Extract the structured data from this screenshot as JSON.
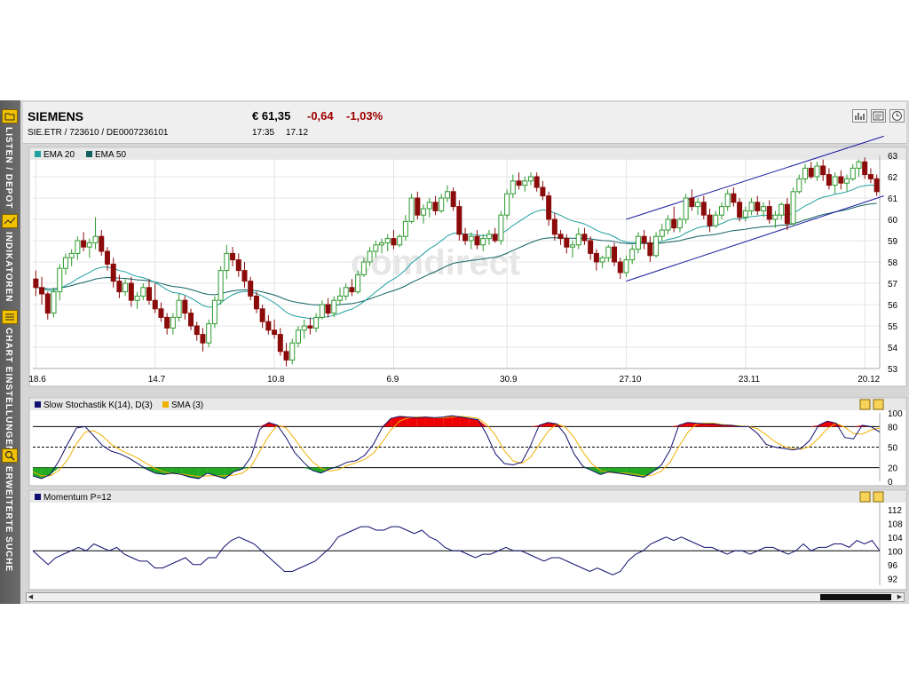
{
  "sidebar": {
    "items": [
      {
        "label": "LISTEN / DEPOT",
        "icon": "folder-icon"
      },
      {
        "label": "INDIKATOREN",
        "icon": "indicator-icon"
      },
      {
        "label": "CHART EINSTELLUNGEN",
        "icon": "list-icon"
      },
      {
        "label": "ERWEITERTE SUCHE",
        "icon": "magnifier-icon"
      }
    ]
  },
  "header": {
    "name": "SIEMENS",
    "identifiers": "SIE.ETR  /  723610  /  DE0007236101",
    "price": "€ 61,35",
    "change": "-0,64",
    "change_pct": "-1,03%",
    "time": "17:35",
    "date": "17.12",
    "buttons": [
      "bar-chart-icon",
      "news-icon",
      "clock-icon"
    ]
  },
  "watermark": "comdirect",
  "colors": {
    "up": "#2e9a2e",
    "down": "#8b0a0a",
    "ema20": "#20a0a0",
    "ema50": "#106060",
    "channel": "#1a1aa0",
    "stoch_k": "#101070",
    "stoch_d": "#f0b000",
    "overbought_fill": "#ee0000",
    "oversold_fill": "#22aa22",
    "momentum": "#101070"
  },
  "chart_data": [
    {
      "type": "candlestick",
      "legend": [
        "EMA 20",
        "EMA 50"
      ],
      "x_ticks": [
        "18.6",
        "14.7",
        "10.8",
        "6.9",
        "30.9",
        "27.10",
        "23.11",
        "20.12"
      ],
      "y_ticks": [
        53,
        54,
        55,
        56,
        57,
        58,
        59,
        60,
        61,
        62,
        63
      ],
      "ylim": [
        53,
        63
      ],
      "channel": {
        "upper": [
          [
            27.1,
            60.0
          ],
          [
            20.12,
            63.9
          ]
        ],
        "lower": [
          [
            27.1,
            57.1
          ],
          [
            20.12,
            61.1
          ]
        ]
      },
      "ohlc": [
        [
          57.2,
          57.6,
          56.4,
          56.8
        ],
        [
          56.8,
          57.3,
          56.0,
          56.5
        ],
        [
          56.5,
          56.6,
          55.3,
          55.6
        ],
        [
          55.6,
          56.8,
          55.4,
          56.6
        ],
        [
          56.6,
          57.9,
          56.2,
          57.7
        ],
        [
          57.7,
          58.4,
          57.4,
          58.2
        ],
        [
          58.2,
          58.6,
          57.8,
          58.4
        ],
        [
          58.4,
          59.2,
          58.1,
          59.0
        ],
        [
          59.0,
          59.4,
          58.5,
          58.7
        ],
        [
          58.7,
          59.1,
          58.2,
          58.9
        ],
        [
          58.9,
          60.1,
          58.6,
          59.2
        ],
        [
          59.2,
          59.5,
          58.3,
          58.5
        ],
        [
          58.5,
          58.7,
          57.6,
          57.9
        ],
        [
          57.9,
          58.2,
          56.8,
          57.1
        ],
        [
          57.1,
          57.4,
          56.3,
          56.6
        ],
        [
          56.6,
          57.2,
          56.4,
          57.0
        ],
        [
          57.0,
          57.3,
          55.9,
          56.2
        ],
        [
          56.2,
          56.6,
          55.8,
          56.4
        ],
        [
          56.4,
          57.0,
          56.2,
          56.8
        ],
        [
          56.8,
          57.2,
          56.0,
          56.2
        ],
        [
          56.2,
          57.0,
          55.6,
          55.8
        ],
        [
          55.8,
          56.1,
          55.2,
          55.4
        ],
        [
          55.4,
          55.6,
          54.6,
          54.9
        ],
        [
          54.9,
          55.6,
          54.6,
          55.4
        ],
        [
          55.4,
          56.5,
          55.2,
          56.2
        ],
        [
          56.2,
          56.4,
          55.3,
          55.6
        ],
        [
          55.6,
          55.8,
          54.8,
          55.0
        ],
        [
          55.0,
          55.2,
          54.3,
          54.6
        ],
        [
          54.6,
          54.9,
          53.8,
          54.2
        ],
        [
          54.2,
          55.3,
          54.0,
          55.1
        ],
        [
          55.1,
          56.4,
          54.9,
          56.2
        ],
        [
          56.2,
          57.8,
          56.0,
          57.6
        ],
        [
          57.6,
          58.8,
          57.2,
          58.4
        ],
        [
          58.4,
          58.7,
          57.8,
          58.1
        ],
        [
          58.1,
          58.4,
          57.3,
          57.6
        ],
        [
          57.6,
          58.0,
          56.8,
          57.1
        ],
        [
          57.1,
          57.3,
          56.2,
          56.4
        ],
        [
          56.4,
          56.6,
          55.6,
          55.8
        ],
        [
          55.8,
          56.0,
          54.9,
          55.2
        ],
        [
          55.2,
          55.5,
          54.6,
          54.8
        ],
        [
          54.8,
          55.3,
          54.4,
          54.6
        ],
        [
          54.6,
          54.9,
          53.6,
          53.8
        ],
        [
          53.8,
          54.2,
          53.1,
          53.4
        ],
        [
          53.4,
          54.4,
          53.2,
          54.2
        ],
        [
          54.2,
          55.0,
          54.0,
          54.8
        ],
        [
          54.8,
          55.3,
          54.4,
          55.0
        ],
        [
          55.0,
          55.4,
          54.6,
          54.9
        ],
        [
          54.9,
          55.6,
          54.7,
          55.4
        ],
        [
          55.4,
          56.2,
          55.3,
          56.0
        ],
        [
          56.0,
          56.3,
          55.4,
          55.6
        ],
        [
          55.6,
          56.4,
          55.4,
          56.2
        ],
        [
          56.2,
          56.8,
          56.0,
          56.4
        ],
        [
          56.4,
          57.0,
          56.2,
          56.8
        ],
        [
          56.8,
          57.2,
          56.4,
          56.6
        ],
        [
          56.6,
          57.6,
          56.5,
          57.4
        ],
        [
          57.4,
          58.2,
          57.3,
          58.0
        ],
        [
          58.0,
          58.7,
          57.8,
          58.5
        ],
        [
          58.5,
          59.0,
          58.2,
          58.8
        ],
        [
          58.8,
          59.1,
          58.4,
          58.9
        ],
        [
          58.9,
          59.3,
          58.5,
          59.1
        ],
        [
          59.1,
          59.5,
          58.6,
          58.8
        ],
        [
          58.8,
          59.3,
          58.7,
          59.2
        ],
        [
          59.2,
          60.2,
          59.0,
          59.9
        ],
        [
          59.9,
          61.2,
          59.8,
          61.0
        ],
        [
          61.0,
          61.3,
          60.0,
          60.2
        ],
        [
          60.2,
          60.7,
          59.8,
          60.5
        ],
        [
          60.5,
          61.0,
          60.1,
          60.8
        ],
        [
          60.8,
          61.1,
          60.2,
          60.4
        ],
        [
          60.4,
          61.2,
          60.3,
          61.0
        ],
        [
          61.0,
          61.6,
          60.8,
          61.3
        ],
        [
          61.3,
          61.5,
          60.4,
          60.6
        ],
        [
          60.6,
          60.9,
          59.0,
          59.3
        ],
        [
          59.3,
          59.6,
          58.8,
          59.0
        ],
        [
          59.0,
          59.4,
          58.6,
          59.2
        ],
        [
          59.2,
          59.5,
          58.6,
          58.8
        ],
        [
          58.8,
          59.3,
          58.5,
          59.1
        ],
        [
          59.1,
          59.5,
          58.8,
          59.3
        ],
        [
          59.3,
          59.6,
          58.9,
          59.0
        ],
        [
          59.0,
          60.4,
          58.8,
          60.2
        ],
        [
          60.2,
          61.4,
          60.0,
          61.2
        ],
        [
          61.2,
          62.1,
          61.0,
          61.8
        ],
        [
          61.8,
          62.2,
          61.4,
          61.6
        ],
        [
          61.6,
          62.0,
          61.3,
          61.8
        ],
        [
          61.8,
          62.2,
          61.6,
          62.0
        ],
        [
          62.0,
          62.2,
          61.3,
          61.5
        ],
        [
          61.5,
          61.8,
          60.9,
          61.1
        ],
        [
          61.1,
          61.3,
          59.7,
          60.0
        ],
        [
          60.0,
          60.3,
          59.0,
          59.3
        ],
        [
          59.3,
          59.5,
          58.8,
          59.1
        ],
        [
          59.1,
          59.3,
          58.4,
          58.7
        ],
        [
          58.7,
          59.0,
          58.2,
          58.8
        ],
        [
          58.8,
          59.6,
          58.6,
          59.3
        ],
        [
          59.3,
          59.6,
          58.8,
          59.0
        ],
        [
          59.0,
          59.2,
          58.1,
          58.4
        ],
        [
          58.4,
          58.6,
          57.6,
          58.0
        ],
        [
          58.0,
          58.3,
          57.7,
          58.2
        ],
        [
          58.2,
          58.8,
          58.0,
          58.7
        ],
        [
          58.7,
          58.9,
          57.8,
          58.0
        ],
        [
          58.0,
          58.2,
          57.2,
          57.5
        ],
        [
          57.5,
          58.3,
          57.3,
          58.1
        ],
        [
          58.1,
          58.8,
          57.9,
          58.6
        ],
        [
          58.6,
          59.4,
          58.4,
          59.2
        ],
        [
          59.2,
          59.5,
          58.6,
          58.9
        ],
        [
          58.9,
          59.2,
          58.0,
          58.3
        ],
        [
          58.3,
          59.4,
          58.2,
          59.2
        ],
        [
          59.2,
          59.8,
          59.0,
          59.5
        ],
        [
          59.5,
          60.2,
          59.3,
          60.0
        ],
        [
          60.0,
          60.6,
          59.4,
          59.6
        ],
        [
          59.6,
          60.1,
          59.4,
          60.0
        ],
        [
          60.0,
          61.2,
          59.8,
          61.0
        ],
        [
          61.0,
          61.4,
          60.4,
          60.6
        ],
        [
          60.6,
          61.0,
          60.2,
          60.8
        ],
        [
          60.8,
          61.1,
          60.0,
          60.2
        ],
        [
          60.2,
          60.5,
          59.4,
          59.7
        ],
        [
          59.7,
          60.4,
          59.6,
          60.2
        ],
        [
          60.2,
          60.8,
          60.0,
          60.6
        ],
        [
          60.6,
          61.4,
          60.4,
          61.2
        ],
        [
          61.2,
          61.5,
          60.6,
          60.8
        ],
        [
          60.8,
          61.0,
          59.9,
          60.1
        ],
        [
          60.1,
          60.6,
          59.9,
          60.4
        ],
        [
          60.4,
          61.0,
          60.2,
          60.8
        ],
        [
          60.8,
          61.1,
          60.2,
          60.4
        ],
        [
          60.4,
          60.8,
          60.1,
          60.6
        ],
        [
          60.6,
          60.9,
          59.8,
          60.0
        ],
        [
          60.0,
          60.4,
          59.6,
          60.2
        ],
        [
          60.2,
          60.8,
          60.0,
          60.7
        ],
        [
          60.7,
          61.0,
          59.5,
          59.8
        ],
        [
          59.8,
          61.5,
          59.7,
          61.3
        ],
        [
          61.3,
          62.1,
          61.2,
          61.9
        ],
        [
          61.9,
          62.6,
          61.7,
          62.4
        ],
        [
          62.4,
          62.7,
          61.9,
          62.0
        ],
        [
          62.0,
          62.7,
          61.8,
          62.5
        ],
        [
          62.5,
          62.8,
          61.8,
          62.1
        ],
        [
          62.1,
          62.4,
          61.4,
          61.6
        ],
        [
          61.6,
          62.2,
          61.2,
          62.0
        ],
        [
          62.0,
          62.3,
          61.4,
          61.7
        ],
        [
          61.7,
          62.1,
          61.3,
          61.9
        ],
        [
          61.9,
          62.6,
          61.8,
          62.4
        ],
        [
          62.4,
          62.8,
          62.0,
          62.7
        ],
        [
          62.7,
          62.9,
          61.9,
          62.1
        ],
        [
          62.1,
          62.4,
          61.7,
          61.9
        ],
        [
          61.9,
          62.1,
          61.1,
          61.3
        ]
      ]
    },
    {
      "type": "line",
      "legend": [
        "Slow Stochastik K(14), D(3)",
        "SMA (3)"
      ],
      "y_ticks": [
        100,
        80,
        50,
        20,
        0
      ],
      "ylim": [
        0,
        100
      ],
      "levels": [
        80,
        50,
        20
      ],
      "series": [
        {
          "name": "Slow Stochastik K(14), D(3)",
          "values": [
            8,
            4,
            10,
            30,
            55,
            78,
            80,
            66,
            52,
            44,
            40,
            34,
            26,
            18,
            12,
            10,
            12,
            10,
            6,
            4,
            12,
            8,
            4,
            14,
            18,
            36,
            76,
            86,
            82,
            64,
            42,
            28,
            16,
            12,
            18,
            22,
            28,
            30,
            38,
            54,
            78,
            92,
            95,
            94,
            93,
            94,
            93,
            94,
            96,
            94,
            92,
            90,
            68,
            40,
            26,
            24,
            28,
            52,
            82,
            86,
            84,
            68,
            40,
            22,
            16,
            10,
            14,
            12,
            10,
            8,
            6,
            14,
            24,
            46,
            82,
            86,
            85,
            84,
            84,
            82,
            82,
            80,
            80,
            70,
            54,
            50,
            48,
            46,
            48,
            60,
            82,
            88,
            85,
            64,
            62,
            82,
            80,
            72
          ]
        },
        {
          "name": "SMA (3)",
          "values": [
            14,
            8,
            8,
            16,
            32,
            55,
            72,
            74,
            66,
            54,
            46,
            40,
            34,
            26,
            19,
            14,
            11,
            11,
            9,
            7,
            8,
            8,
            8,
            9,
            12,
            22,
            44,
            66,
            82,
            78,
            62,
            44,
            29,
            19,
            15,
            17,
            23,
            27,
            32,
            41,
            57,
            75,
            88,
            93,
            94,
            94,
            93,
            93,
            94,
            95,
            94,
            92,
            83,
            67,
            45,
            30,
            26,
            35,
            54,
            73,
            84,
            79,
            64,
            43,
            26,
            16,
            13,
            12,
            12,
            10,
            8,
            9,
            15,
            28,
            51,
            71,
            84,
            85,
            85,
            83,
            82,
            81,
            80,
            77,
            68,
            58,
            51,
            48,
            47,
            51,
            63,
            77,
            85,
            79,
            70,
            69,
            75,
            78
          ]
        }
      ]
    },
    {
      "type": "line",
      "legend": [
        "Momentum P=12"
      ],
      "y_ticks": [
        112,
        108,
        104,
        100,
        96,
        92
      ],
      "ylim": [
        90,
        114
      ],
      "reference": 100,
      "series": [
        {
          "name": "Momentum P=12",
          "values": [
            100,
            98,
            96,
            98,
            99,
            100,
            101,
            100,
            102,
            101,
            100,
            101,
            99,
            98,
            97,
            97,
            95,
            95,
            96,
            97,
            98,
            96,
            96,
            98,
            98,
            101,
            103,
            104,
            103,
            102,
            100,
            98,
            96,
            94,
            94,
            95,
            96,
            97,
            99,
            101,
            104,
            105,
            106,
            107,
            107,
            106,
            106,
            107,
            107,
            106,
            105,
            106,
            104,
            103,
            101,
            100,
            100,
            99,
            98,
            99,
            99,
            100,
            101,
            100,
            100,
            99,
            98,
            97,
            98,
            98,
            97,
            96,
            95,
            94,
            95,
            94,
            93,
            94,
            97,
            99,
            100,
            102,
            103,
            104,
            103,
            104,
            103,
            102,
            101,
            101,
            100,
            99,
            100,
            100,
            99,
            100,
            101,
            101,
            100,
            99,
            100,
            102,
            100,
            101,
            101,
            102,
            102,
            101,
            103,
            102,
            103,
            100
          ]
        }
      ]
    }
  ]
}
